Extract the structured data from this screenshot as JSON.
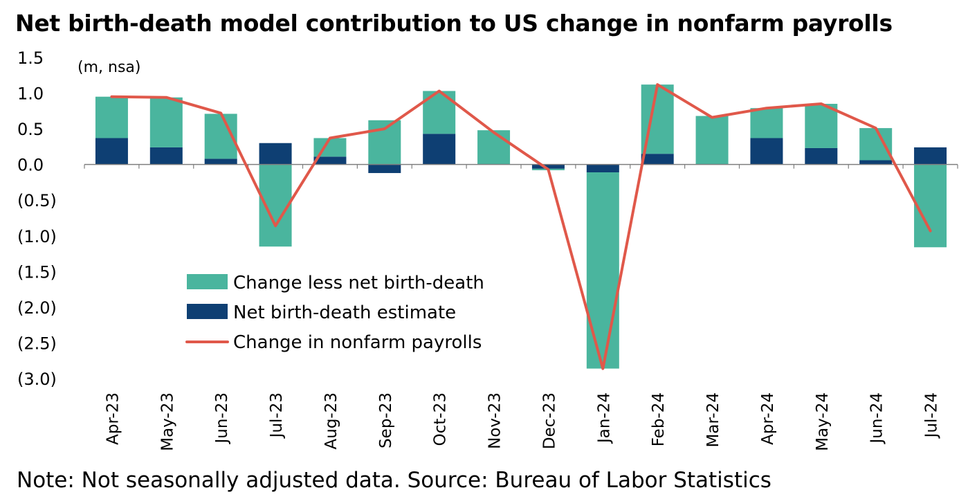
{
  "chart_data": {
    "type": "bar",
    "title": "Net birth-death model contribution to US change in nonfarm payrolls",
    "unit_label": "(m, nsa)",
    "note": "Note: Not seasonally adjusted data. Source: Bureau of Labor Statistics",
    "categories": [
      "Apr-23",
      "May-23",
      "Jun-23",
      "Jul-23",
      "Aug-23",
      "Sep-23",
      "Oct-23",
      "Nov-23",
      "Dec-23",
      "Jan-24",
      "Feb-24",
      "Mar-24",
      "Apr-24",
      "May-24",
      "Jun-24",
      "Jul-24"
    ],
    "ylim": [
      -3.0,
      1.5
    ],
    "yticks": [
      1.5,
      1.0,
      0.5,
      0.0,
      -0.5,
      -1.0,
      -1.5,
      -2.0,
      -2.5,
      -3.0
    ],
    "ytick_labels": [
      "1.5",
      "1.0",
      "0.5",
      "0.0",
      "(0.5)",
      "(1.0)",
      "(1.5)",
      "(2.0)",
      "(2.5)",
      "(3.0)"
    ],
    "legend_position": "lower-left",
    "grid": false,
    "series": [
      {
        "name": "Change less net birth-death",
        "type": "bar",
        "color": "#4AB59E",
        "values": [
          0.58,
          0.7,
          0.63,
          -1.15,
          0.26,
          0.62,
          0.6,
          0.48,
          -0.02,
          -2.75,
          0.97,
          0.68,
          0.42,
          0.62,
          0.45,
          -1.16
        ]
      },
      {
        "name": "Net birth-death estimate",
        "type": "bar",
        "color": "#0E3F73",
        "values": [
          0.37,
          0.24,
          0.08,
          0.3,
          0.11,
          -0.12,
          0.43,
          0.0,
          -0.06,
          -0.11,
          0.15,
          0.0,
          0.37,
          0.23,
          0.06,
          0.24
        ]
      },
      {
        "name": "Change in nonfarm payrolls",
        "type": "line",
        "color": "#E0584A",
        "values": [
          0.95,
          0.94,
          0.72,
          -0.86,
          0.37,
          0.5,
          1.03,
          0.45,
          -0.07,
          -2.86,
          1.12,
          0.66,
          0.79,
          0.85,
          0.51,
          -0.93
        ]
      }
    ]
  }
}
